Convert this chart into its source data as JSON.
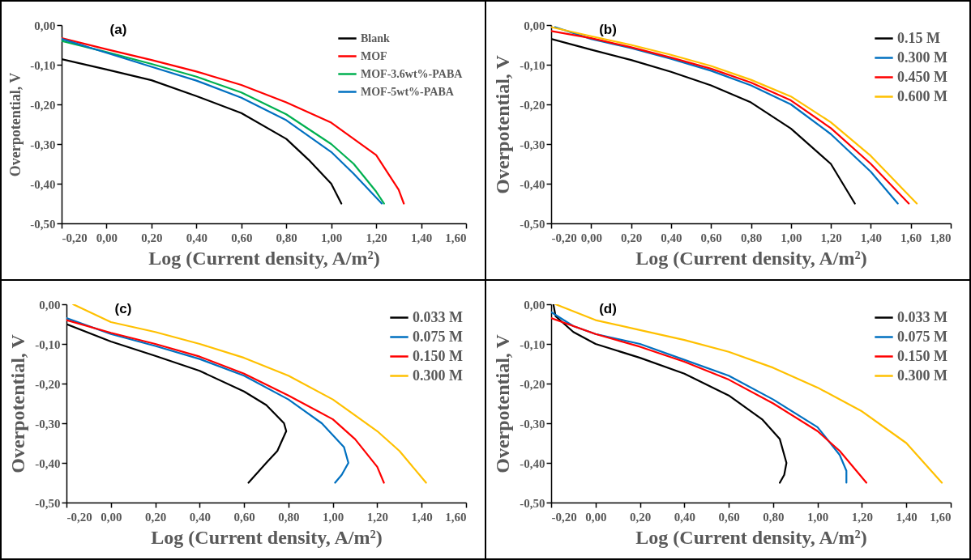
{
  "chart_data": [
    {
      "type": "line",
      "annotations": [
        "(a)"
      ],
      "xlabel": "Log (Current density, A/m²)",
      "ylabel": "Overpotential, V",
      "legend": "top right",
      "xlim": [
        -0.2,
        1.6
      ],
      "xticks": [
        {
          "value": -0.2,
          "label": "-0,20"
        },
        {
          "value": 0,
          "label": "0,00"
        },
        {
          "value": 0.2,
          "label": "0,20"
        },
        {
          "value": 0.4,
          "label": "0,40"
        },
        {
          "value": 0.6,
          "label": "0,60"
        },
        {
          "value": 0.8,
          "label": "0,80"
        },
        {
          "value": 1.0,
          "label": "1,00"
        },
        {
          "value": 1.2,
          "label": "1,20"
        },
        {
          "value": 1.4,
          "label": "1,40"
        },
        {
          "value": 1.6,
          "label": "1,60"
        }
      ],
      "ylim": [
        -0.5,
        0
      ],
      "yticks": [
        {
          "value": -0.5,
          "label": "-0,50"
        },
        {
          "value": -0.4,
          "label": "-0,40"
        },
        {
          "value": -0.3,
          "label": "-0,30"
        },
        {
          "value": -0.2,
          "label": "-0,20"
        },
        {
          "value": -0.1,
          "label": "-0,10"
        },
        {
          "value": 0,
          "label": "0,00"
        }
      ],
      "series": [
        {
          "name": "Blank",
          "color": "#000000",
          "x": [
            -0.2,
            0,
            0.2,
            0.4,
            0.6,
            0.8,
            0.9,
            1.0,
            1.045
          ],
          "values": [
            -0.086,
            -0.112,
            -0.139,
            -0.179,
            -0.222,
            -0.287,
            -0.34,
            -0.4,
            -0.45
          ]
        },
        {
          "name": "MOF",
          "color": "#ff0000",
          "x": [
            -0.2,
            0,
            0.2,
            0.4,
            0.6,
            0.8,
            1.0,
            1.2,
            1.3,
            1.323
          ],
          "values": [
            -0.033,
            -0.061,
            -0.088,
            -0.117,
            -0.151,
            -0.195,
            -0.246,
            -0.328,
            -0.415,
            -0.45
          ]
        },
        {
          "name": "MOF-3.6wt%-PABA",
          "color": "#00b050",
          "x": [
            -0.2,
            0,
            0.2,
            0.4,
            0.6,
            0.8,
            1.0,
            1.1,
            1.2,
            1.235
          ],
          "values": [
            -0.04,
            -0.068,
            -0.098,
            -0.13,
            -0.17,
            -0.225,
            -0.3,
            -0.35,
            -0.42,
            -0.45
          ]
        },
        {
          "name": "MOF-5wt%-PABA",
          "color": "#0070c0",
          "x": [
            -0.2,
            0,
            0.2,
            0.4,
            0.6,
            0.8,
            1.0,
            1.1,
            1.225
          ],
          "values": [
            -0.035,
            -0.07,
            -0.105,
            -0.14,
            -0.183,
            -0.24,
            -0.32,
            -0.375,
            -0.45
          ]
        }
      ]
    },
    {
      "type": "line",
      "annotations": [
        "(b)"
      ],
      "xlabel": "Log (Current density, A/m²)",
      "ylabel": "Overpotential, V",
      "legend": "top right",
      "xlim": [
        -0.2,
        1.8
      ],
      "xticks": [
        {
          "value": -0.2,
          "label": "-0,20"
        },
        {
          "value": 0,
          "label": "0,00"
        },
        {
          "value": 0.2,
          "label": "0,20"
        },
        {
          "value": 0.4,
          "label": "0,40"
        },
        {
          "value": 0.6,
          "label": "0,60"
        },
        {
          "value": 0.8,
          "label": "0,80"
        },
        {
          "value": 1.0,
          "label": "1,00"
        },
        {
          "value": 1.2,
          "label": "1,20"
        },
        {
          "value": 1.4,
          "label": "1,40"
        },
        {
          "value": 1.6,
          "label": "1,60"
        },
        {
          "value": 1.8,
          "label": "1,80"
        }
      ],
      "ylim": [
        -0.5,
        0
      ],
      "yticks": [
        {
          "value": -0.5,
          "label": "-0,50"
        },
        {
          "value": -0.4,
          "label": "-0,40"
        },
        {
          "value": -0.3,
          "label": "-0,30"
        },
        {
          "value": -0.2,
          "label": "-0,20"
        },
        {
          "value": -0.1,
          "label": "-0,10"
        },
        {
          "value": 0,
          "label": "0,00"
        }
      ],
      "series": [
        {
          "name": "0.15 M",
          "color": "#000000",
          "x": [
            -0.2,
            0,
            0.2,
            0.4,
            0.6,
            0.8,
            1.0,
            1.2,
            1.32
          ],
          "values": [
            -0.035,
            -0.062,
            -0.088,
            -0.118,
            -0.152,
            -0.195,
            -0.261,
            -0.35,
            -0.45
          ]
        },
        {
          "name": "0.300 M",
          "color": "#0070c0",
          "x": [
            -0.18,
            0,
            0.2,
            0.4,
            0.6,
            0.8,
            1.0,
            1.2,
            1.4,
            1.535
          ],
          "values": [
            -0.005,
            -0.035,
            -0.058,
            -0.085,
            -0.115,
            -0.152,
            -0.2,
            -0.275,
            -0.37,
            -0.45
          ]
        },
        {
          "name": "0.450 M",
          "color": "#ff0000",
          "x": [
            -0.2,
            0,
            0.2,
            0.4,
            0.6,
            0.8,
            1.0,
            1.2,
            1.4,
            1.59
          ],
          "values": [
            -0.015,
            -0.033,
            -0.056,
            -0.082,
            -0.11,
            -0.145,
            -0.19,
            -0.26,
            -0.35,
            -0.45
          ]
        },
        {
          "name": "0.600 M",
          "color": "#ffc000",
          "x": [
            -0.2,
            0,
            0.2,
            0.4,
            0.6,
            0.8,
            1.0,
            1.2,
            1.4,
            1.63
          ],
          "values": [
            -0.005,
            -0.028,
            -0.05,
            -0.075,
            -0.103,
            -0.138,
            -0.18,
            -0.245,
            -0.33,
            -0.45
          ]
        }
      ]
    },
    {
      "type": "line",
      "annotations": [
        "(c)"
      ],
      "xlabel": "Log (Current density, A/m²)",
      "ylabel": "Overpotential, V",
      "legend": "top right",
      "xlim": [
        -0.2,
        1.6
      ],
      "xticks": [
        {
          "value": -0.2,
          "label": "-0,20"
        },
        {
          "value": 0,
          "label": "0,00"
        },
        {
          "value": 0.2,
          "label": "0,20"
        },
        {
          "value": 0.4,
          "label": "0,40"
        },
        {
          "value": 0.6,
          "label": "0,60"
        },
        {
          "value": 0.8,
          "label": "0,80"
        },
        {
          "value": 1.0,
          "label": "1,00"
        },
        {
          "value": 1.2,
          "label": "1,20"
        },
        {
          "value": 1.4,
          "label": "1,40"
        },
        {
          "value": 1.6,
          "label": "1,60"
        }
      ],
      "ylim": [
        -0.5,
        0
      ],
      "yticks": [
        {
          "value": -0.5,
          "label": "-0,50"
        },
        {
          "value": -0.4,
          "label": "-0,40"
        },
        {
          "value": -0.3,
          "label": "-0,30"
        },
        {
          "value": -0.2,
          "label": "-0,20"
        },
        {
          "value": -0.1,
          "label": "-0,10"
        },
        {
          "value": 0,
          "label": "0,00"
        }
      ],
      "series": [
        {
          "name": "0.033 M",
          "color": "#000000",
          "x": [
            -0.2,
            0,
            0.2,
            0.4,
            0.6,
            0.7,
            0.78,
            0.79,
            0.75,
            0.7,
            0.62
          ],
          "values": [
            -0.05,
            -0.094,
            -0.13,
            -0.168,
            -0.22,
            -0.254,
            -0.3,
            -0.32,
            -0.37,
            -0.4,
            -0.45
          ]
        },
        {
          "name": "0.075 M",
          "color": "#0070c0",
          "x": [
            -0.2,
            0,
            0.2,
            0.4,
            0.6,
            0.8,
            0.95,
            1.05,
            1.07,
            1.04,
            1.01
          ],
          "values": [
            -0.035,
            -0.075,
            -0.105,
            -0.138,
            -0.18,
            -0.24,
            -0.3,
            -0.36,
            -0.4,
            -0.43,
            -0.45
          ]
        },
        {
          "name": "0.150 M",
          "color": "#ff0000",
          "x": [
            -0.2,
            0,
            0.2,
            0.4,
            0.6,
            0.8,
            1.0,
            1.1,
            1.2,
            1.23
          ],
          "values": [
            -0.04,
            -0.072,
            -0.1,
            -0.132,
            -0.175,
            -0.23,
            -0.29,
            -0.34,
            -0.41,
            -0.45
          ]
        },
        {
          "name": "0.300 M",
          "color": "#ffc000",
          "x": [
            -0.17,
            0,
            0.2,
            0.4,
            0.6,
            0.8,
            1.0,
            1.2,
            1.3,
            1.42
          ],
          "values": [
            0,
            -0.045,
            -0.07,
            -0.1,
            -0.135,
            -0.18,
            -0.24,
            -0.32,
            -0.37,
            -0.45
          ]
        }
      ]
    },
    {
      "type": "line",
      "annotations": [
        "(d)"
      ],
      "xlabel": "Log (Current density, A/m²)",
      "ylabel": "Overpotential, V",
      "legend": "top right",
      "xlim": [
        -0.2,
        1.6
      ],
      "xticks": [
        {
          "value": -0.2,
          "label": "-0,20"
        },
        {
          "value": 0,
          "label": "0,00"
        },
        {
          "value": 0.2,
          "label": "0,20"
        },
        {
          "value": 0.4,
          "label": "0,40"
        },
        {
          "value": 0.6,
          "label": "0,60"
        },
        {
          "value": 0.8,
          "label": "0,80"
        },
        {
          "value": 1.0,
          "label": "1,00"
        },
        {
          "value": 1.2,
          "label": "1,20"
        },
        {
          "value": 1.4,
          "label": "1,40"
        },
        {
          "value": 1.6,
          "label": "1,60"
        }
      ],
      "ylim": [
        -0.5,
        0
      ],
      "yticks": [
        {
          "value": -0.5,
          "label": "-0,50"
        },
        {
          "value": -0.4,
          "label": "-0,40"
        },
        {
          "value": -0.3,
          "label": "-0,30"
        },
        {
          "value": -0.2,
          "label": "-0,20"
        },
        {
          "value": -0.1,
          "label": "-0,10"
        },
        {
          "value": 0,
          "label": "0,00"
        }
      ],
      "series": [
        {
          "name": "0.033 M",
          "color": "#000000",
          "x": [
            -0.19,
            -0.18,
            -0.1,
            0,
            0.2,
            0.4,
            0.6,
            0.75,
            0.83,
            0.86,
            0.85,
            0.83
          ],
          "values": [
            0,
            -0.03,
            -0.07,
            -0.1,
            -0.135,
            -0.175,
            -0.23,
            -0.29,
            -0.34,
            -0.4,
            -0.43,
            -0.45
          ]
        },
        {
          "name": "0.075 M",
          "color": "#0070c0",
          "x": [
            -0.2,
            -0.1,
            0,
            0.2,
            0.4,
            0.6,
            0.8,
            1.0,
            1.1,
            1.13,
            1.13
          ],
          "values": [
            -0.02,
            -0.055,
            -0.075,
            -0.1,
            -0.14,
            -0.18,
            -0.24,
            -0.31,
            -0.38,
            -0.42,
            -0.45
          ]
        },
        {
          "name": "0.150 M",
          "color": "#ff0000",
          "x": [
            -0.2,
            0,
            0.2,
            0.4,
            0.6,
            0.8,
            1.0,
            1.1,
            1.22
          ],
          "values": [
            -0.035,
            -0.075,
            -0.107,
            -0.145,
            -0.19,
            -0.25,
            -0.32,
            -0.37,
            -0.45
          ]
        },
        {
          "name": "0.300 M",
          "color": "#ffc000",
          "x": [
            -0.18,
            0,
            0.2,
            0.4,
            0.6,
            0.8,
            1.0,
            1.2,
            1.4,
            1.56
          ],
          "values": [
            0,
            -0.04,
            -0.065,
            -0.09,
            -0.12,
            -0.16,
            -0.21,
            -0.27,
            -0.35,
            -0.45
          ]
        }
      ]
    }
  ]
}
